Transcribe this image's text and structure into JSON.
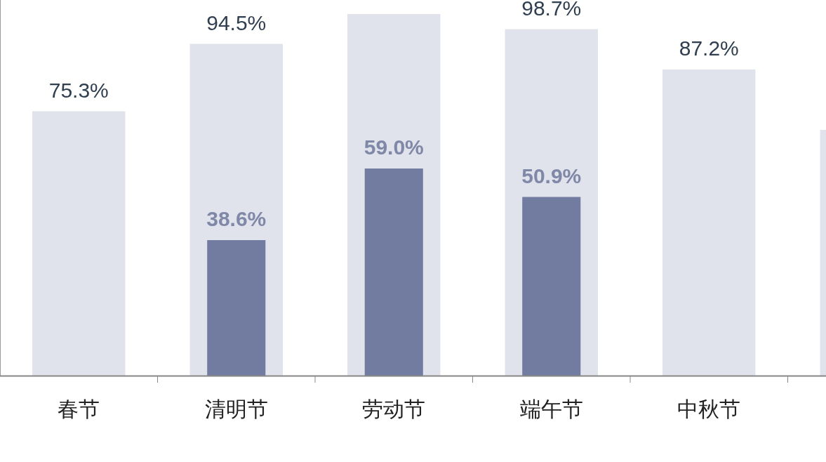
{
  "chart_data": {
    "type": "bar",
    "categories": [
      "春节",
      "清明节",
      "劳动节",
      "端午节",
      "中秋节",
      null
    ],
    "series": [
      {
        "color": "#e0e3eb",
        "values": [
          75.3,
          94.5,
          103,
          98.7,
          87.2,
          70
        ],
        "value_labels": [
          "75.3%",
          "94.5%",
          null,
          "98.7%",
          "87.2%",
          null
        ]
      },
      {
        "color": "#727ba0",
        "values": [
          null,
          38.6,
          59.0,
          50.9,
          null,
          null
        ],
        "value_labels": [
          null,
          "38.6%",
          "59.0%",
          "50.9%",
          null,
          null
        ]
      }
    ]
  }
}
